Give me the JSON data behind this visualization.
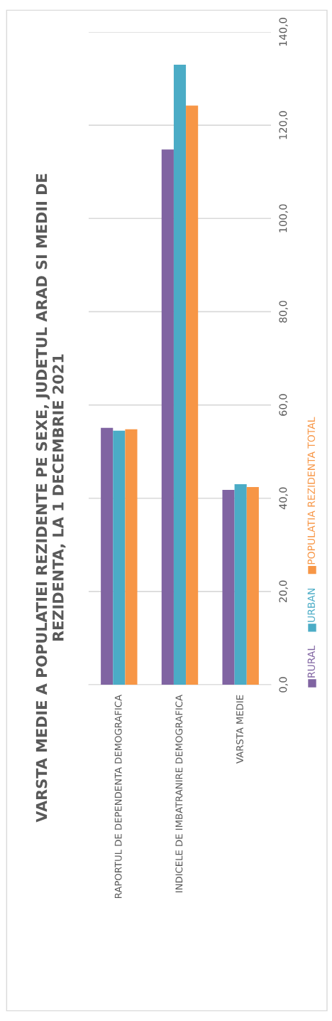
{
  "chart_data": {
    "type": "bar",
    "title": "VARSTA MEDIE A POPULATIEI REZIDENTE PE SEXE, JUDETUL ARAD SI MEDII DE REZIDENTA, LA 1 DECEMBRIE 2021",
    "categories": [
      "RAPORTUL DE DEPENDENTA DEMOGRAFICA",
      "INDICELE DE IMBATRANIRE DEMOGRAFICA",
      "VARSTA MEDIE"
    ],
    "series": [
      {
        "name": "RURAL",
        "color": "#8064a2",
        "values": [
          55.1,
          114.8,
          41.8
        ]
      },
      {
        "name": "URBAN",
        "color": "#4bacc6",
        "values": [
          54.5,
          133.0,
          43.0
        ]
      },
      {
        "name": "POPULATIA REZIDENTA TOTAL",
        "color": "#f79646",
        "values": [
          54.8,
          124.2,
          42.4
        ]
      }
    ],
    "ylim": [
      0,
      140
    ],
    "yticks": [
      {
        "value": 0,
        "label": "0,0"
      },
      {
        "value": 20,
        "label": "20,0"
      },
      {
        "value": 40,
        "label": "40,0"
      },
      {
        "value": 60,
        "label": "60,0"
      },
      {
        "value": 80,
        "label": "80,0"
      },
      {
        "value": 100,
        "label": "100,0"
      },
      {
        "value": 120,
        "label": "120,0"
      },
      {
        "value": 140,
        "label": "140,0"
      }
    ],
    "grid": "y",
    "legend": "right"
  }
}
